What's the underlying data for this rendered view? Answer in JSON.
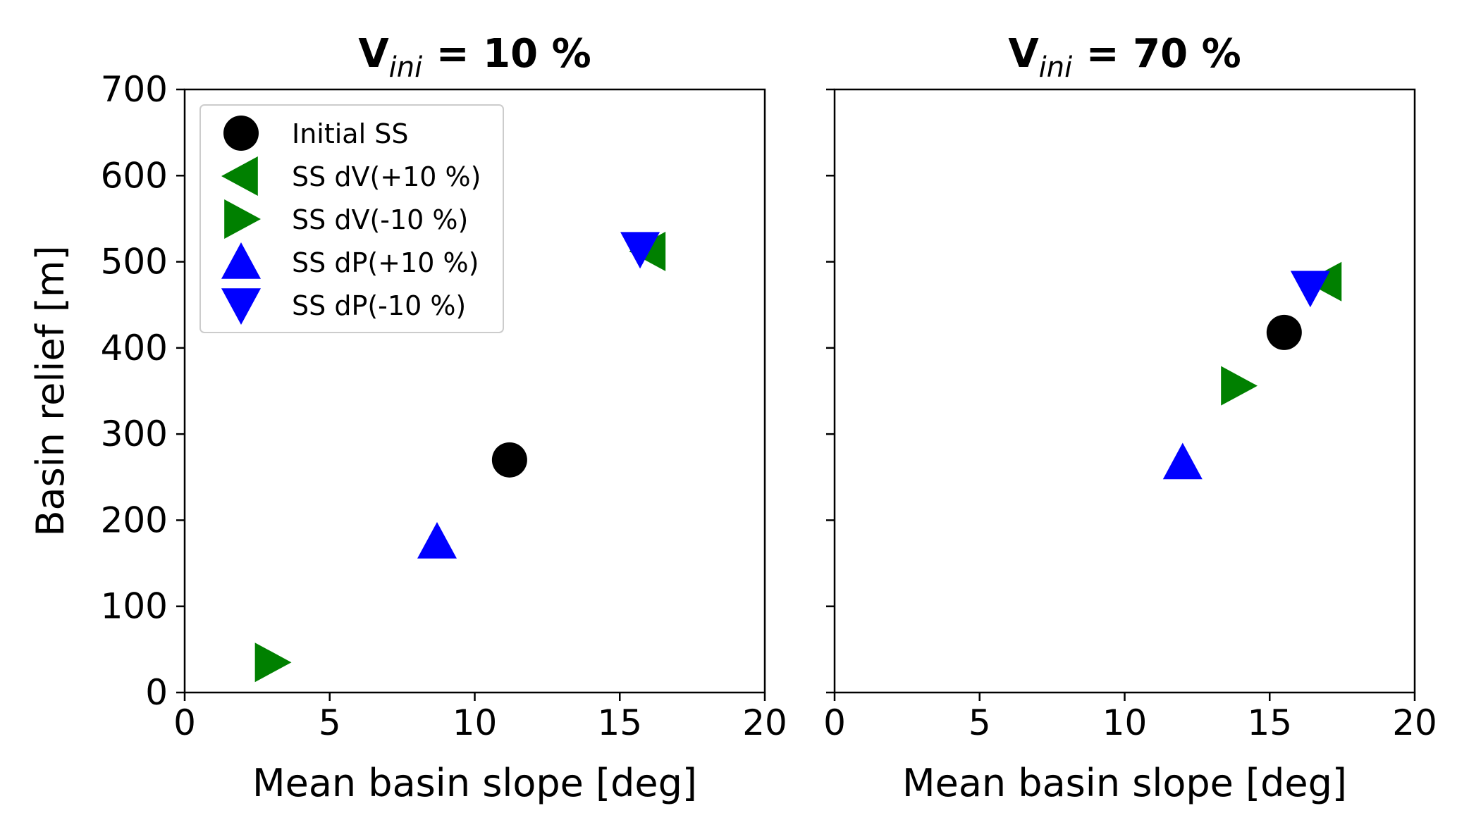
{
  "chart_data": [
    {
      "type": "scatter",
      "title": {
        "main": "V",
        "sub": "ini",
        "rest": " = 10  %"
      },
      "xlabel": "Mean basin slope [deg]",
      "ylabel": "Basin relief [m]",
      "xlim": [
        0,
        20
      ],
      "ylim": [
        0,
        700
      ],
      "xticks": [
        "0",
        "5",
        "10",
        "15",
        "20"
      ],
      "yticks": [
        "0",
        "100",
        "200",
        "300",
        "400",
        "500",
        "600",
        "700"
      ],
      "show_ytick_labels": true,
      "grid": false,
      "legend": "upper left",
      "series": [
        {
          "name": "Initial SS",
          "marker": "circle",
          "color": "#000000",
          "points": [
            {
              "x": 11.2,
              "y": 270
            }
          ]
        },
        {
          "name": "SS dV(+10 %)",
          "marker": "triangle-left",
          "color": "#008000",
          "points": [
            {
              "x": 16.0,
              "y": 512
            }
          ]
        },
        {
          "name": "SS dV(-10 %)",
          "marker": "triangle-right",
          "color": "#008000",
          "points": [
            {
              "x": 3.0,
              "y": 35
            }
          ]
        },
        {
          "name": "SS dP(+10 %)",
          "marker": "triangle-up",
          "color": "#0000ff",
          "points": [
            {
              "x": 8.7,
              "y": 175
            }
          ]
        },
        {
          "name": "SS dP(-10 %)",
          "marker": "triangle-down",
          "color": "#0000ff",
          "points": [
            {
              "x": 15.7,
              "y": 515
            }
          ]
        }
      ]
    },
    {
      "type": "scatter",
      "title": {
        "main": "V",
        "sub": "ini",
        "rest": " = 70  %"
      },
      "xlabel": "Mean basin slope [deg]",
      "ylabel": "",
      "xlim": [
        0,
        20
      ],
      "ylim": [
        0,
        700
      ],
      "xticks": [
        "0",
        "5",
        "10",
        "15",
        "20"
      ],
      "yticks": [
        "0",
        "100",
        "200",
        "300",
        "400",
        "500",
        "600",
        "700"
      ],
      "show_ytick_labels": false,
      "grid": false,
      "legend": "none",
      "series": [
        {
          "name": "Initial SS",
          "marker": "circle",
          "color": "#000000",
          "points": [
            {
              "x": 15.5,
              "y": 418
            }
          ]
        },
        {
          "name": "SS dV(+10 %)",
          "marker": "triangle-left",
          "color": "#008000",
          "points": [
            {
              "x": 16.9,
              "y": 477
            }
          ]
        },
        {
          "name": "SS dV(-10 %)",
          "marker": "triangle-right",
          "color": "#008000",
          "points": [
            {
              "x": 13.9,
              "y": 356
            }
          ]
        },
        {
          "name": "SS dP(+10 %)",
          "marker": "triangle-up",
          "color": "#0000ff",
          "points": [
            {
              "x": 12.0,
              "y": 267
            }
          ]
        },
        {
          "name": "SS dP(-10 %)",
          "marker": "triangle-down",
          "color": "#0000ff",
          "points": [
            {
              "x": 16.4,
              "y": 470
            }
          ]
        }
      ]
    }
  ]
}
